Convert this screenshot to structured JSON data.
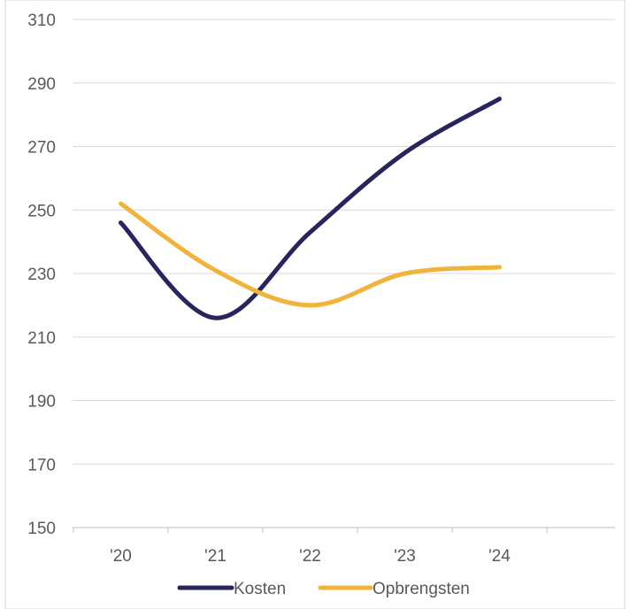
{
  "chart_data": {
    "type": "line",
    "categories": [
      "'20",
      "'21",
      "'22",
      "'23",
      "'24"
    ],
    "ylim": [
      150,
      310
    ],
    "yticks": [
      "150",
      "170",
      "190",
      "210",
      "230",
      "250",
      "270",
      "290",
      "310"
    ],
    "grid": true,
    "legend_position": "bottom",
    "series": [
      {
        "name": "Kosten",
        "color": "#27245e",
        "values": [
          246,
          216,
          243,
          268,
          285
        ]
      },
      {
        "name": "Opbrengsten",
        "color": "#f0b43c",
        "values": [
          252,
          231,
          220,
          230,
          232
        ]
      }
    ]
  }
}
